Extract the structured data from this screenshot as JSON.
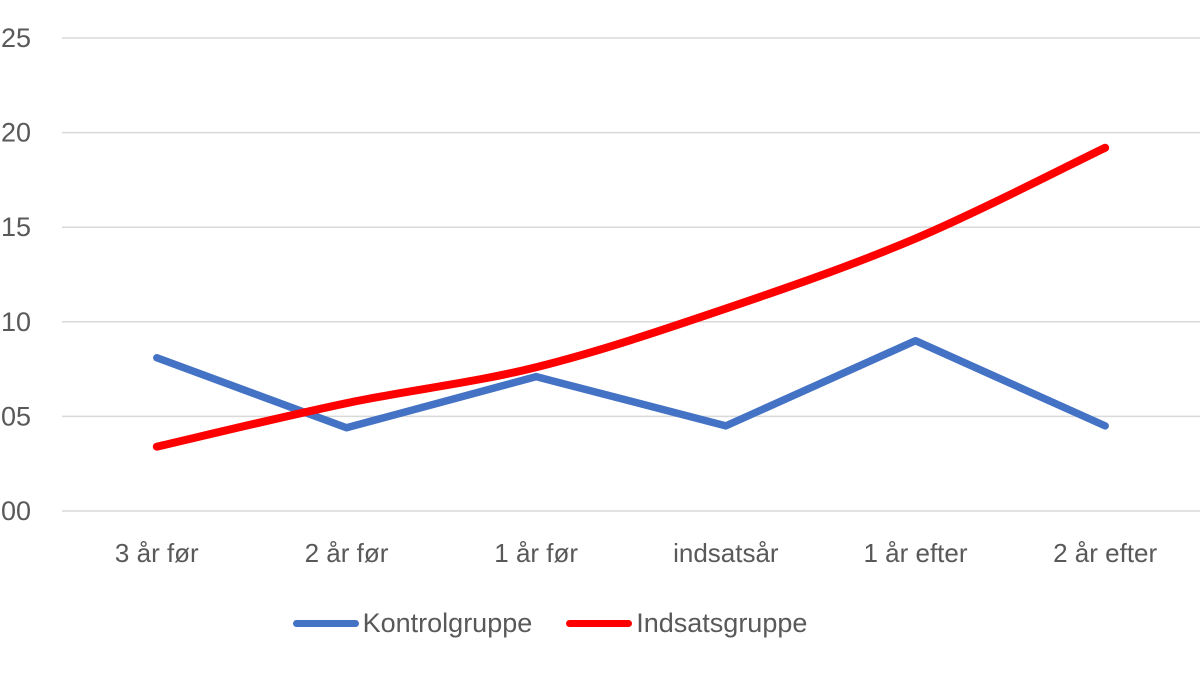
{
  "chart_data": {
    "type": "line",
    "categories": [
      "3 år før",
      "2 år før",
      "1 år før",
      "indsatsår",
      "1 år efter",
      "2 år efter"
    ],
    "series": [
      {
        "name": "Kontrolgruppe",
        "color": "#4472C4",
        "stroke_width": 7.5,
        "smooth": false,
        "values": [
          8.1,
          4.4,
          7.1,
          4.5,
          9.0,
          4.5
        ]
      },
      {
        "name": "Indsatsgruppe",
        "color": "#FF0000",
        "stroke_width": 8,
        "smooth": true,
        "values": [
          3.4,
          5.7,
          7.6,
          10.7,
          14.4,
          19.2
        ]
      }
    ],
    "xlabel": "",
    "ylabel": "",
    "title": "",
    "y_axis": {
      "tick_labels": [
        "00",
        "05",
        "10",
        "15",
        "20",
        "25"
      ],
      "tick_values": [
        0,
        5,
        10,
        15,
        20,
        25
      ],
      "min": 0,
      "max": 25,
      "note": "tick labels appear left-truncated at image edge (likely 0,00–0,25 format)"
    },
    "grid": true,
    "gridline_color": "#D9D9D9",
    "text_color": "#595959",
    "legend_position": "bottom",
    "legend_entries": [
      "Kontrolgruppe",
      "Indsatsgruppe"
    ]
  }
}
